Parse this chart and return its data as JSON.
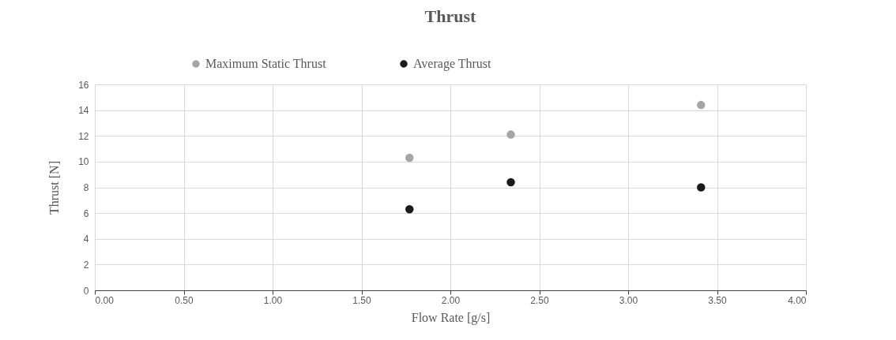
{
  "chart_data": {
    "type": "scatter",
    "title": "Thrust",
    "xlabel": "Flow Rate [g/s]",
    "ylabel": "Thrust [N]",
    "x": [
      1.77,
      2.34,
      3.41
    ],
    "series": [
      {
        "name": "Maximum Static Thrust",
        "color": "#a5a5a5",
        "values": [
          10.3,
          12.1,
          14.4
        ]
      },
      {
        "name": "Average Thrust",
        "color": "#1a1a1a",
        "values": [
          6.3,
          8.4,
          8.0
        ]
      }
    ],
    "xlim": [
      0,
      4
    ],
    "xticks": [
      {
        "value": 0,
        "label": "0.00"
      },
      {
        "value": 0.5,
        "label": "0.50"
      },
      {
        "value": 1,
        "label": "1.00"
      },
      {
        "value": 1.5,
        "label": "1.50"
      },
      {
        "value": 2,
        "label": "2.00"
      },
      {
        "value": 2.5,
        "label": "2.50"
      },
      {
        "value": 3,
        "label": "3.00"
      },
      {
        "value": 3.5,
        "label": "3.50"
      },
      {
        "value": 4,
        "label": "4.00"
      }
    ],
    "ylim": [
      0,
      16
    ],
    "yticks": [
      0,
      2,
      4,
      6,
      8,
      10,
      12,
      14,
      16
    ],
    "grid": true,
    "legend": "top",
    "marker": "circle"
  }
}
